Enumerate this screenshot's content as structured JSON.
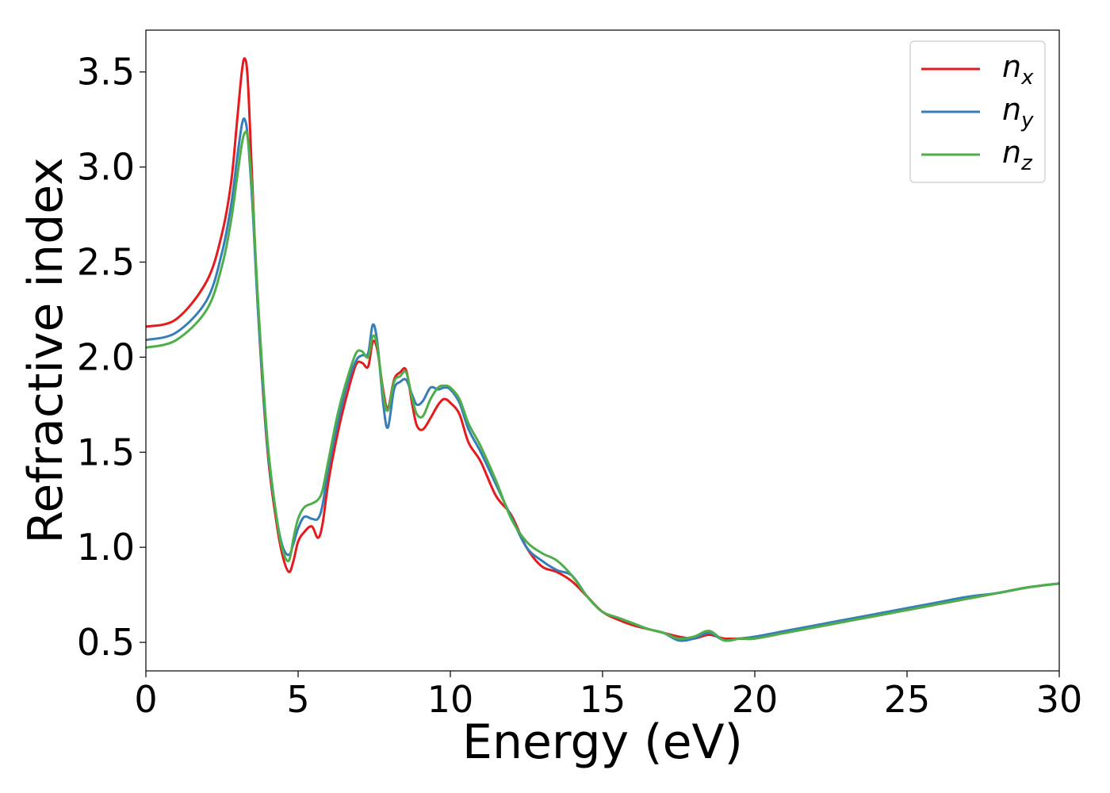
{
  "chart_data": {
    "type": "line",
    "title": "",
    "xlabel": "Energy (eV)",
    "ylabel": "Refractive index",
    "xlim": [
      0,
      30
    ],
    "ylim": [
      0.35,
      3.72
    ],
    "x_ticks": [
      0,
      5,
      10,
      15,
      20,
      25,
      30
    ],
    "x_tick_labels": [
      "0",
      "5",
      "10",
      "15",
      "20",
      "25",
      "30"
    ],
    "y_ticks": [
      0.5,
      1.0,
      1.5,
      2.0,
      2.5,
      3.0,
      3.5
    ],
    "y_tick_labels": [
      "0.5",
      "1.0",
      "1.5",
      "2.0",
      "2.5",
      "3.0",
      "3.5"
    ],
    "grid": false,
    "legend_position": "top-right",
    "series": [
      {
        "name": "n",
        "subscript": "x",
        "color": "#e41a1c",
        "x": [
          0,
          1,
          2,
          2.5,
          2.8,
          3.0,
          3.15,
          3.25,
          3.35,
          3.5,
          3.7,
          4.0,
          4.3,
          4.5,
          4.7,
          4.85,
          5.0,
          5.2,
          5.45,
          5.65,
          5.8,
          6.0,
          6.3,
          6.6,
          6.9,
          7.1,
          7.3,
          7.45,
          7.6,
          7.8,
          7.95,
          8.15,
          8.35,
          8.55,
          8.75,
          8.9,
          9.1,
          9.35,
          9.6,
          9.8,
          10.0,
          10.3,
          10.6,
          11.0,
          11.5,
          12.0,
          12.5,
          13.0,
          13.5,
          14.0,
          14.5,
          15.0,
          15.5,
          16.0,
          16.5,
          17.0,
          17.5,
          18.0,
          18.5,
          19.0,
          19.5,
          20.0,
          21.0,
          22.0,
          23.0,
          24.0,
          25.0,
          26.0,
          27.0,
          28.0,
          29.0,
          30.0
        ],
        "y": [
          2.16,
          2.2,
          2.4,
          2.65,
          2.92,
          3.25,
          3.5,
          3.57,
          3.45,
          2.9,
          2.2,
          1.5,
          1.12,
          0.95,
          0.87,
          0.93,
          1.03,
          1.08,
          1.11,
          1.05,
          1.12,
          1.35,
          1.6,
          1.8,
          1.96,
          1.97,
          1.95,
          2.08,
          2.04,
          1.82,
          1.73,
          1.88,
          1.92,
          1.93,
          1.75,
          1.64,
          1.62,
          1.68,
          1.75,
          1.78,
          1.76,
          1.7,
          1.55,
          1.45,
          1.27,
          1.17,
          1.0,
          0.9,
          0.87,
          0.82,
          0.74,
          0.66,
          0.62,
          0.59,
          0.57,
          0.55,
          0.53,
          0.52,
          0.54,
          0.52,
          0.52,
          0.52,
          0.55,
          0.58,
          0.61,
          0.64,
          0.67,
          0.7,
          0.73,
          0.76,
          0.79,
          0.81
        ]
      },
      {
        "name": "n",
        "subscript": "y",
        "color": "#377eb8",
        "x": [
          0,
          1,
          2,
          2.5,
          2.8,
          3.0,
          3.15,
          3.25,
          3.35,
          3.5,
          3.7,
          4.0,
          4.3,
          4.5,
          4.7,
          4.85,
          5.0,
          5.2,
          5.45,
          5.65,
          5.8,
          6.0,
          6.3,
          6.6,
          6.9,
          7.1,
          7.3,
          7.45,
          7.6,
          7.8,
          7.95,
          8.15,
          8.35,
          8.55,
          8.75,
          8.9,
          9.1,
          9.35,
          9.6,
          9.8,
          10.0,
          10.3,
          10.6,
          11.0,
          11.5,
          12.0,
          12.5,
          13.0,
          13.5,
          14.0,
          14.5,
          15.0,
          15.5,
          16.0,
          16.5,
          17.0,
          17.5,
          18.0,
          18.5,
          19.0,
          19.5,
          20.0,
          21.0,
          22.0,
          23.0,
          24.0,
          25.0,
          26.0,
          27.0,
          28.0,
          29.0,
          30.0
        ],
        "y": [
          2.09,
          2.13,
          2.3,
          2.55,
          2.8,
          3.05,
          3.22,
          3.25,
          3.15,
          2.8,
          2.2,
          1.52,
          1.15,
          1.0,
          0.96,
          1.02,
          1.1,
          1.16,
          1.15,
          1.15,
          1.22,
          1.42,
          1.65,
          1.85,
          1.98,
          2.01,
          2.02,
          2.17,
          2.08,
          1.75,
          1.63,
          1.83,
          1.87,
          1.88,
          1.8,
          1.75,
          1.77,
          1.84,
          1.83,
          1.84,
          1.83,
          1.76,
          1.62,
          1.5,
          1.33,
          1.16,
          1.0,
          0.93,
          0.88,
          0.85,
          0.74,
          0.66,
          0.63,
          0.6,
          0.57,
          0.55,
          0.51,
          0.52,
          0.55,
          0.51,
          0.52,
          0.53,
          0.56,
          0.59,
          0.62,
          0.65,
          0.68,
          0.71,
          0.74,
          0.76,
          0.79,
          0.81
        ]
      },
      {
        "name": "n",
        "subscript": "z",
        "color": "#4daf4a",
        "x": [
          0,
          1,
          2,
          2.5,
          2.8,
          3.0,
          3.15,
          3.25,
          3.35,
          3.5,
          3.7,
          4.0,
          4.3,
          4.5,
          4.7,
          4.85,
          5.0,
          5.2,
          5.45,
          5.65,
          5.8,
          6.0,
          6.3,
          6.6,
          6.9,
          7.1,
          7.3,
          7.45,
          7.6,
          7.8,
          7.95,
          8.15,
          8.35,
          8.55,
          8.75,
          8.9,
          9.1,
          9.35,
          9.6,
          9.8,
          10.0,
          10.3,
          10.6,
          11.0,
          11.5,
          12.0,
          12.5,
          13.0,
          13.5,
          14.0,
          14.5,
          15.0,
          15.5,
          16.0,
          16.5,
          17.0,
          17.5,
          18.0,
          18.5,
          19.0,
          19.5,
          20.0,
          21.0,
          22.0,
          23.0,
          24.0,
          25.0,
          26.0,
          27.0,
          28.0,
          29.0,
          30.0
        ],
        "y": [
          2.05,
          2.09,
          2.25,
          2.48,
          2.72,
          2.95,
          3.12,
          3.18,
          3.15,
          2.85,
          2.25,
          1.55,
          1.15,
          0.98,
          0.93,
          1.05,
          1.15,
          1.21,
          1.23,
          1.25,
          1.3,
          1.46,
          1.7,
          1.88,
          2.02,
          2.03,
          2.0,
          2.11,
          2.06,
          1.8,
          1.72,
          1.87,
          1.9,
          1.92,
          1.78,
          1.7,
          1.69,
          1.78,
          1.84,
          1.85,
          1.84,
          1.78,
          1.65,
          1.53,
          1.35,
          1.15,
          1.03,
          0.97,
          0.93,
          0.85,
          0.74,
          0.66,
          0.63,
          0.6,
          0.57,
          0.55,
          0.52,
          0.53,
          0.56,
          0.51,
          0.52,
          0.52,
          0.55,
          0.58,
          0.61,
          0.64,
          0.67,
          0.7,
          0.73,
          0.76,
          0.79,
          0.81
        ]
      }
    ]
  }
}
